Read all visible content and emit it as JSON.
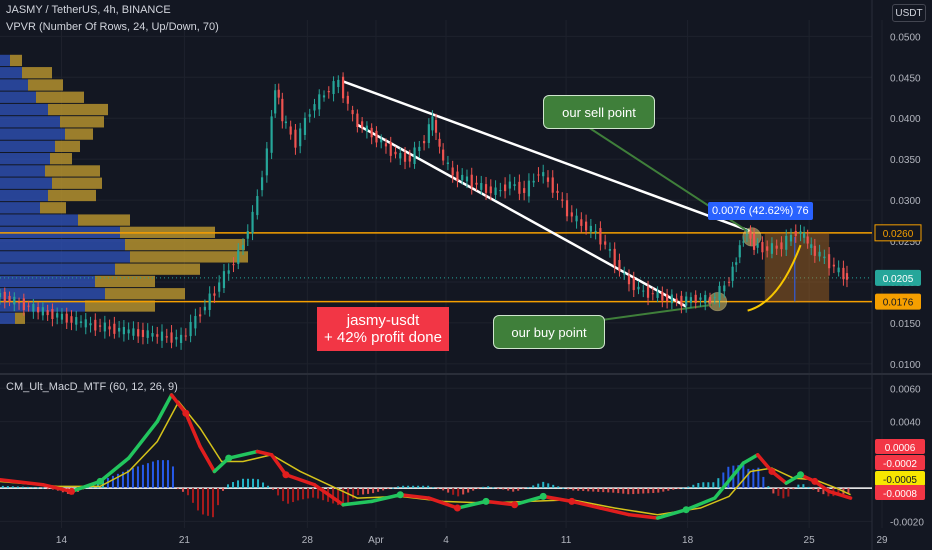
{
  "header": {
    "title": "JASMY / TetherUS, 4h, BINANCE",
    "indicator": "VPVR (Number Of Rows, 24, Up/Down, 70)",
    "currency": "USDT"
  },
  "annotations": {
    "sell_point": "our sell point",
    "buy_point": "our buy point",
    "profit_line1": "jasmy-usdt",
    "profit_line2": "+ 42% profit done",
    "measure": "0.0076 (42.62%) 76"
  },
  "macd": {
    "title": "CM_Ult_MacD_MTF (60, 12, 26, 9)"
  },
  "colors": {
    "background": "#131722",
    "up": "#26a69a",
    "down": "#ef5350",
    "level": "#f59f00",
    "macd_up": "#22c55e",
    "macd_down": "#e01e1e",
    "signal": "#d4c21a",
    "vp_up": "#2e50b4",
    "vp_down": "#b4902e"
  },
  "chart_data": [
    {
      "type": "line",
      "name": "price",
      "xlabels": [
        "14",
        "21",
        "28",
        "Apr",
        "4",
        "11",
        "18",
        "25",
        "29"
      ],
      "yticks": [
        0.01,
        0.015,
        0.02,
        0.025,
        0.03,
        0.035,
        0.04,
        0.045,
        0.05
      ],
      "ylim": [
        0.009,
        0.052
      ],
      "series": [
        {
          "name": "JASMY/USDT close (approx)",
          "points": [
            [
              0,
              0.0185
            ],
            [
              3,
              0.0165
            ],
            [
              6,
              0.015
            ],
            [
              9,
              0.014
            ],
            [
              11,
              0.0135
            ],
            [
              13,
              0.013
            ],
            [
              15,
              0.018
            ],
            [
              17,
              0.0235
            ],
            [
              18,
              0.028
            ],
            [
              19,
              0.036
            ],
            [
              19.5,
              0.044
            ],
            [
              20,
              0.04
            ],
            [
              21,
              0.037
            ],
            [
              22,
              0.041
            ],
            [
              23,
              0.043
            ],
            [
              24,
              0.0445
            ],
            [
              25,
              0.04
            ],
            [
              26,
              0.0385
            ],
            [
              27,
              0.037
            ],
            [
              28,
              0.0355
            ],
            [
              29,
              0.035
            ],
            [
              30,
              0.0375
            ],
            [
              30.5,
              0.04
            ],
            [
              31,
              0.036
            ],
            [
              32,
              0.033
            ],
            [
              33,
              0.0325
            ],
            [
              34,
              0.0315
            ],
            [
              35,
              0.031
            ],
            [
              36,
              0.032
            ],
            [
              37,
              0.031
            ],
            [
              38,
              0.0335
            ],
            [
              39,
              0.0315
            ],
            [
              40,
              0.0285
            ],
            [
              41,
              0.027
            ],
            [
              42,
              0.026
            ],
            [
              43,
              0.0235
            ],
            [
              44,
              0.0205
            ],
            [
              45,
              0.019
            ],
            [
              46,
              0.0185
            ],
            [
              47,
              0.018
            ],
            [
              48,
              0.0176
            ],
            [
              49,
              0.018
            ],
            [
              50,
              0.0178
            ],
            [
              51,
              0.0195
            ],
            [
              51.5,
              0.0215
            ],
            [
              52,
              0.0245
            ],
            [
              52.5,
              0.0262
            ],
            [
              53,
              0.0245
            ],
            [
              54,
              0.024
            ],
            [
              55,
              0.0245
            ],
            [
              56,
              0.0262
            ],
            [
              56.5,
              0.0255
            ],
            [
              57,
              0.024
            ],
            [
              58,
              0.0228
            ],
            [
              59,
              0.0212
            ],
            [
              59.5,
              0.0205
            ]
          ]
        }
      ],
      "levels": [
        0.026,
        0.0176
      ],
      "level_labels": [
        "0.0260",
        "0.0176"
      ],
      "current_price": "0.0205",
      "current_value": 0.0205
    },
    {
      "type": "line",
      "name": "macd",
      "yticks": [
        -0.002,
        0.0,
        0.004,
        0.006
      ],
      "ytick_labels": [
        "-0.0020",
        "",
        "0.0040",
        "0.0060"
      ],
      "ylim": [
        -0.0024,
        0.0068
      ],
      "value_labels": [
        "0.0006",
        "-0.0002",
        "-0.0005",
        "-0.0008"
      ],
      "value_levels": [
        0.0006,
        -0.0002,
        -0.0005,
        -0.0008
      ],
      "series": [
        {
          "name": "MACD",
          "points": [
            [
              0,
              0.0005
            ],
            [
              3,
              0.0002
            ],
            [
              5,
              -0.0002
            ],
            [
              7,
              0.0004
            ],
            [
              9,
              0.0018
            ],
            [
              11,
              0.004
            ],
            [
              12,
              0.0056
            ],
            [
              13,
              0.0045
            ],
            [
              14,
              0.0025
            ],
            [
              15,
              0.001
            ],
            [
              16,
              0.0018
            ],
            [
              18,
              0.0022
            ],
            [
              19,
              0.002
            ],
            [
              20,
              0.0008
            ],
            [
              22,
              0.0002
            ],
            [
              24,
              -0.001
            ],
            [
              26,
              -0.0008
            ],
            [
              28,
              -0.0004
            ],
            [
              30,
              -0.0006
            ],
            [
              32,
              -0.0012
            ],
            [
              34,
              -0.0008
            ],
            [
              36,
              -0.001
            ],
            [
              38,
              -0.0005
            ],
            [
              40,
              -0.0008
            ],
            [
              42,
              -0.0012
            ],
            [
              44,
              -0.0016
            ],
            [
              46,
              -0.0018
            ],
            [
              48,
              -0.0013
            ],
            [
              50,
              -0.0006
            ],
            [
              52,
              0.0015
            ],
            [
              53,
              0.002
            ],
            [
              54,
              0.001
            ],
            [
              55,
              0.0003
            ],
            [
              56,
              0.0008
            ],
            [
              57,
              0.0004
            ],
            [
              58,
              -0.0002
            ],
            [
              59.5,
              -0.0006
            ]
          ]
        },
        {
          "name": "Signal",
          "points": [
            [
              0,
              0.0004
            ],
            [
              4,
              0.0001
            ],
            [
              7,
              0.0001
            ],
            [
              9,
              0.001
            ],
            [
              11,
              0.0028
            ],
            [
              12.5,
              0.0052
            ],
            [
              14,
              0.0036
            ],
            [
              15.5,
              0.0016
            ],
            [
              17,
              0.0016
            ],
            [
              19,
              0.002
            ],
            [
              21,
              0.001
            ],
            [
              23,
              0.0002
            ],
            [
              25,
              -0.0006
            ],
            [
              28,
              -0.0005
            ],
            [
              31,
              -0.0008
            ],
            [
              34,
              -0.0009
            ],
            [
              37,
              -0.0008
            ],
            [
              40,
              -0.0007
            ],
            [
              43,
              -0.0012
            ],
            [
              46,
              -0.0016
            ],
            [
              49,
              -0.0012
            ],
            [
              51,
              -0.0005
            ],
            [
              52.5,
              0.001
            ],
            [
              54,
              0.0012
            ],
            [
              55.5,
              0.0006
            ],
            [
              57,
              0.0005
            ],
            [
              58.5,
              0.0
            ],
            [
              59.5,
              -0.0004
            ]
          ]
        }
      ]
    }
  ]
}
